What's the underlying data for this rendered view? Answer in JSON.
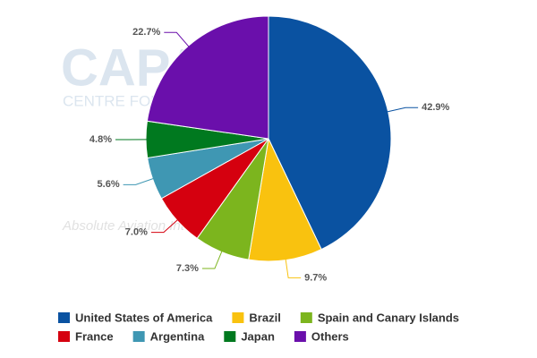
{
  "chart_data": {
    "type": "pie",
    "categories": [
      "United States of America",
      "Brazil",
      "Spain and Canary Islands",
      "France",
      "Argentina",
      "Japan",
      "Others"
    ],
    "values": [
      42.9,
      9.7,
      7.3,
      7.0,
      5.6,
      4.8,
      22.7
    ],
    "value_labels": [
      "42.9%",
      "9.7%",
      "7.3%",
      "7.0%",
      "5.6%",
      "4.8%",
      "22.7%"
    ],
    "colors": [
      "#0a52a1",
      "#f9c20f",
      "#7cb51e",
      "#d5000f",
      "#3f97b3",
      "#00791f",
      "#6a0fab"
    ],
    "legend": "bottom",
    "watermark": [
      "CAPA",
      "CENTRE FOR AVIATION",
      "Absolute Aviation Intelligence"
    ]
  }
}
